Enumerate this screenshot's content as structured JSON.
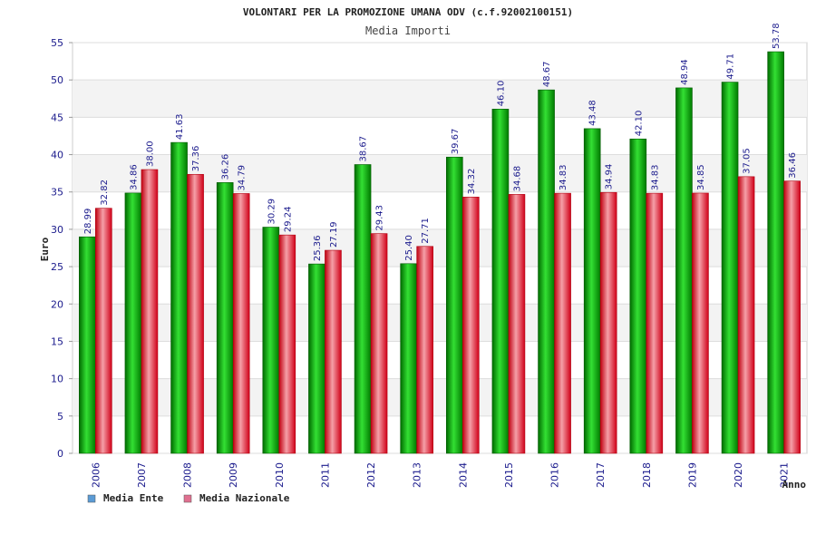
{
  "chart_data": {
    "type": "bar",
    "title": "VOLONTARI PER LA PROMOZIONE UMANA ODV (c.f.92002100151)",
    "subtitle": "Media Importi",
    "ylabel": "Euro",
    "xlabel": "Anno",
    "ylim": [
      0,
      55
    ],
    "yticks": [
      0,
      5,
      10,
      15,
      20,
      25,
      30,
      35,
      40,
      45,
      50,
      55
    ],
    "grid": true,
    "legend_position": "bottom-left",
    "categories": [
      "2006",
      "2007",
      "2008",
      "2009",
      "2010",
      "2011",
      "2012",
      "2013",
      "2014",
      "2015",
      "2016",
      "2017",
      "2018",
      "2019",
      "2020",
      "2021"
    ],
    "series": [
      {
        "name": "Media Ente",
        "color": "#00b000",
        "legend_color": "#5b9bd5",
        "values": [
          28.99,
          34.86,
          41.63,
          36.26,
          30.29,
          25.36,
          38.67,
          25.4,
          39.67,
          46.1,
          48.67,
          43.48,
          42.1,
          48.94,
          49.71,
          53.78
        ],
        "labels": [
          "28.99",
          "34.86",
          "41.63",
          "36.26",
          "30.29",
          "25.36",
          "38.67",
          "25.40",
          "39.67",
          "46.10",
          "48.67",
          "43.48",
          "42.10",
          "48.94",
          "49.71",
          "53.78"
        ]
      },
      {
        "name": "Media Nazionale",
        "color": "#e8202a",
        "legend_color": "#e07090",
        "values": [
          32.82,
          38.0,
          37.36,
          34.79,
          29.24,
          27.19,
          29.43,
          27.71,
          34.32,
          34.68,
          34.83,
          34.94,
          34.83,
          34.85,
          37.05,
          36.46
        ],
        "labels": [
          "32.82",
          "38.00",
          "37.36",
          "34.79",
          "29.24",
          "27.19",
          "29.43",
          "27.71",
          "34.32",
          "34.68",
          "34.83",
          "34.94",
          "34.83",
          "34.85",
          "37.05",
          "36.46"
        ]
      }
    ]
  }
}
